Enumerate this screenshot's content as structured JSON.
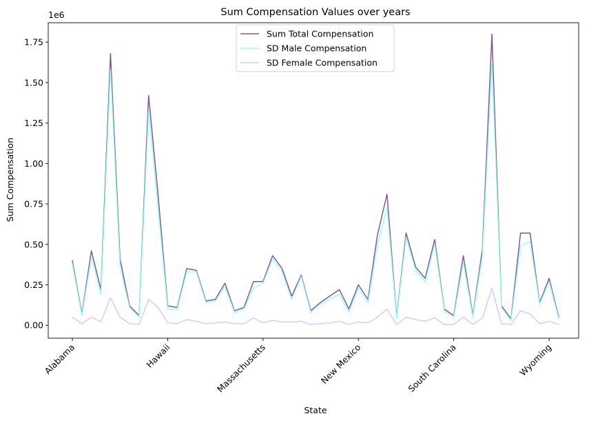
{
  "chart_data": {
    "type": "line",
    "title": "Sum Compensation Values over years",
    "xlabel": "State",
    "ylabel": "Sum Compensation",
    "y_scale_label": "1e6",
    "ylim": [
      -0.08,
      1.87
    ],
    "y_ticks": [
      "0.00",
      "0.25",
      "0.50",
      "0.75",
      "1.00",
      "1.25",
      "1.50",
      "1.75"
    ],
    "y_tick_values": [
      0,
      0.25,
      0.5,
      0.75,
      1.0,
      1.25,
      1.5,
      1.75
    ],
    "x_ticks": [
      {
        "index": 0,
        "label": "Alabama"
      },
      {
        "index": 10,
        "label": "Hawaii"
      },
      {
        "index": 20,
        "label": "Massachusetts"
      },
      {
        "index": 30,
        "label": "New Mexico"
      },
      {
        "index": 40,
        "label": "South Carolina"
      },
      {
        "index": 50,
        "label": "Wyoming"
      }
    ],
    "legend_position": "top-center",
    "grid": false,
    "series": [
      {
        "name": "Sum Total Compensation",
        "color": "#7e5a90",
        "values": [
          0.4,
          0.07,
          0.46,
          0.22,
          1.68,
          0.41,
          0.12,
          0.06,
          1.42,
          0.8,
          0.12,
          0.11,
          0.35,
          0.34,
          0.15,
          0.16,
          0.26,
          0.09,
          0.11,
          0.27,
          0.27,
          0.43,
          0.35,
          0.18,
          0.31,
          0.09,
          0.14,
          0.18,
          0.22,
          0.1,
          0.25,
          0.16,
          0.56,
          0.81,
          0.05,
          0.57,
          0.36,
          0.29,
          0.53,
          0.1,
          0.06,
          0.43,
          0.06,
          0.47,
          1.8,
          0.12,
          0.04,
          0.57,
          0.57,
          0.14,
          0.29,
          0.05
        ]
      },
      {
        "name": "SD Male Compensation",
        "color": "#9ffcf3",
        "values": [
          0.38,
          0.06,
          0.42,
          0.19,
          1.58,
          0.36,
          0.11,
          0.05,
          1.32,
          0.72,
          0.1,
          0.1,
          0.33,
          0.33,
          0.14,
          0.15,
          0.24,
          0.08,
          0.1,
          0.23,
          0.26,
          0.41,
          0.33,
          0.16,
          0.3,
          0.08,
          0.13,
          0.16,
          0.19,
          0.08,
          0.23,
          0.14,
          0.5,
          0.73,
          0.04,
          0.54,
          0.34,
          0.27,
          0.5,
          0.09,
          0.05,
          0.39,
          0.05,
          0.43,
          1.62,
          0.11,
          0.03,
          0.49,
          0.52,
          0.13,
          0.27,
          0.04
        ]
      },
      {
        "name": "SD Female Compensation",
        "color": "#dcc8f8",
        "values": [
          0.05,
          0.01,
          0.05,
          0.02,
          0.17,
          0.05,
          0.01,
          0.005,
          0.16,
          0.11,
          0.015,
          0.01,
          0.035,
          0.025,
          0.01,
          0.015,
          0.02,
          0.01,
          0.01,
          0.045,
          0.015,
          0.03,
          0.02,
          0.02,
          0.025,
          0.005,
          0.01,
          0.015,
          0.025,
          0.005,
          0.02,
          0.015,
          0.05,
          0.1,
          0.005,
          0.05,
          0.035,
          0.025,
          0.045,
          0.005,
          0.005,
          0.05,
          0.005,
          0.045,
          0.23,
          0.01,
          0.005,
          0.09,
          0.07,
          0.01,
          0.025,
          0.005
        ]
      }
    ]
  }
}
